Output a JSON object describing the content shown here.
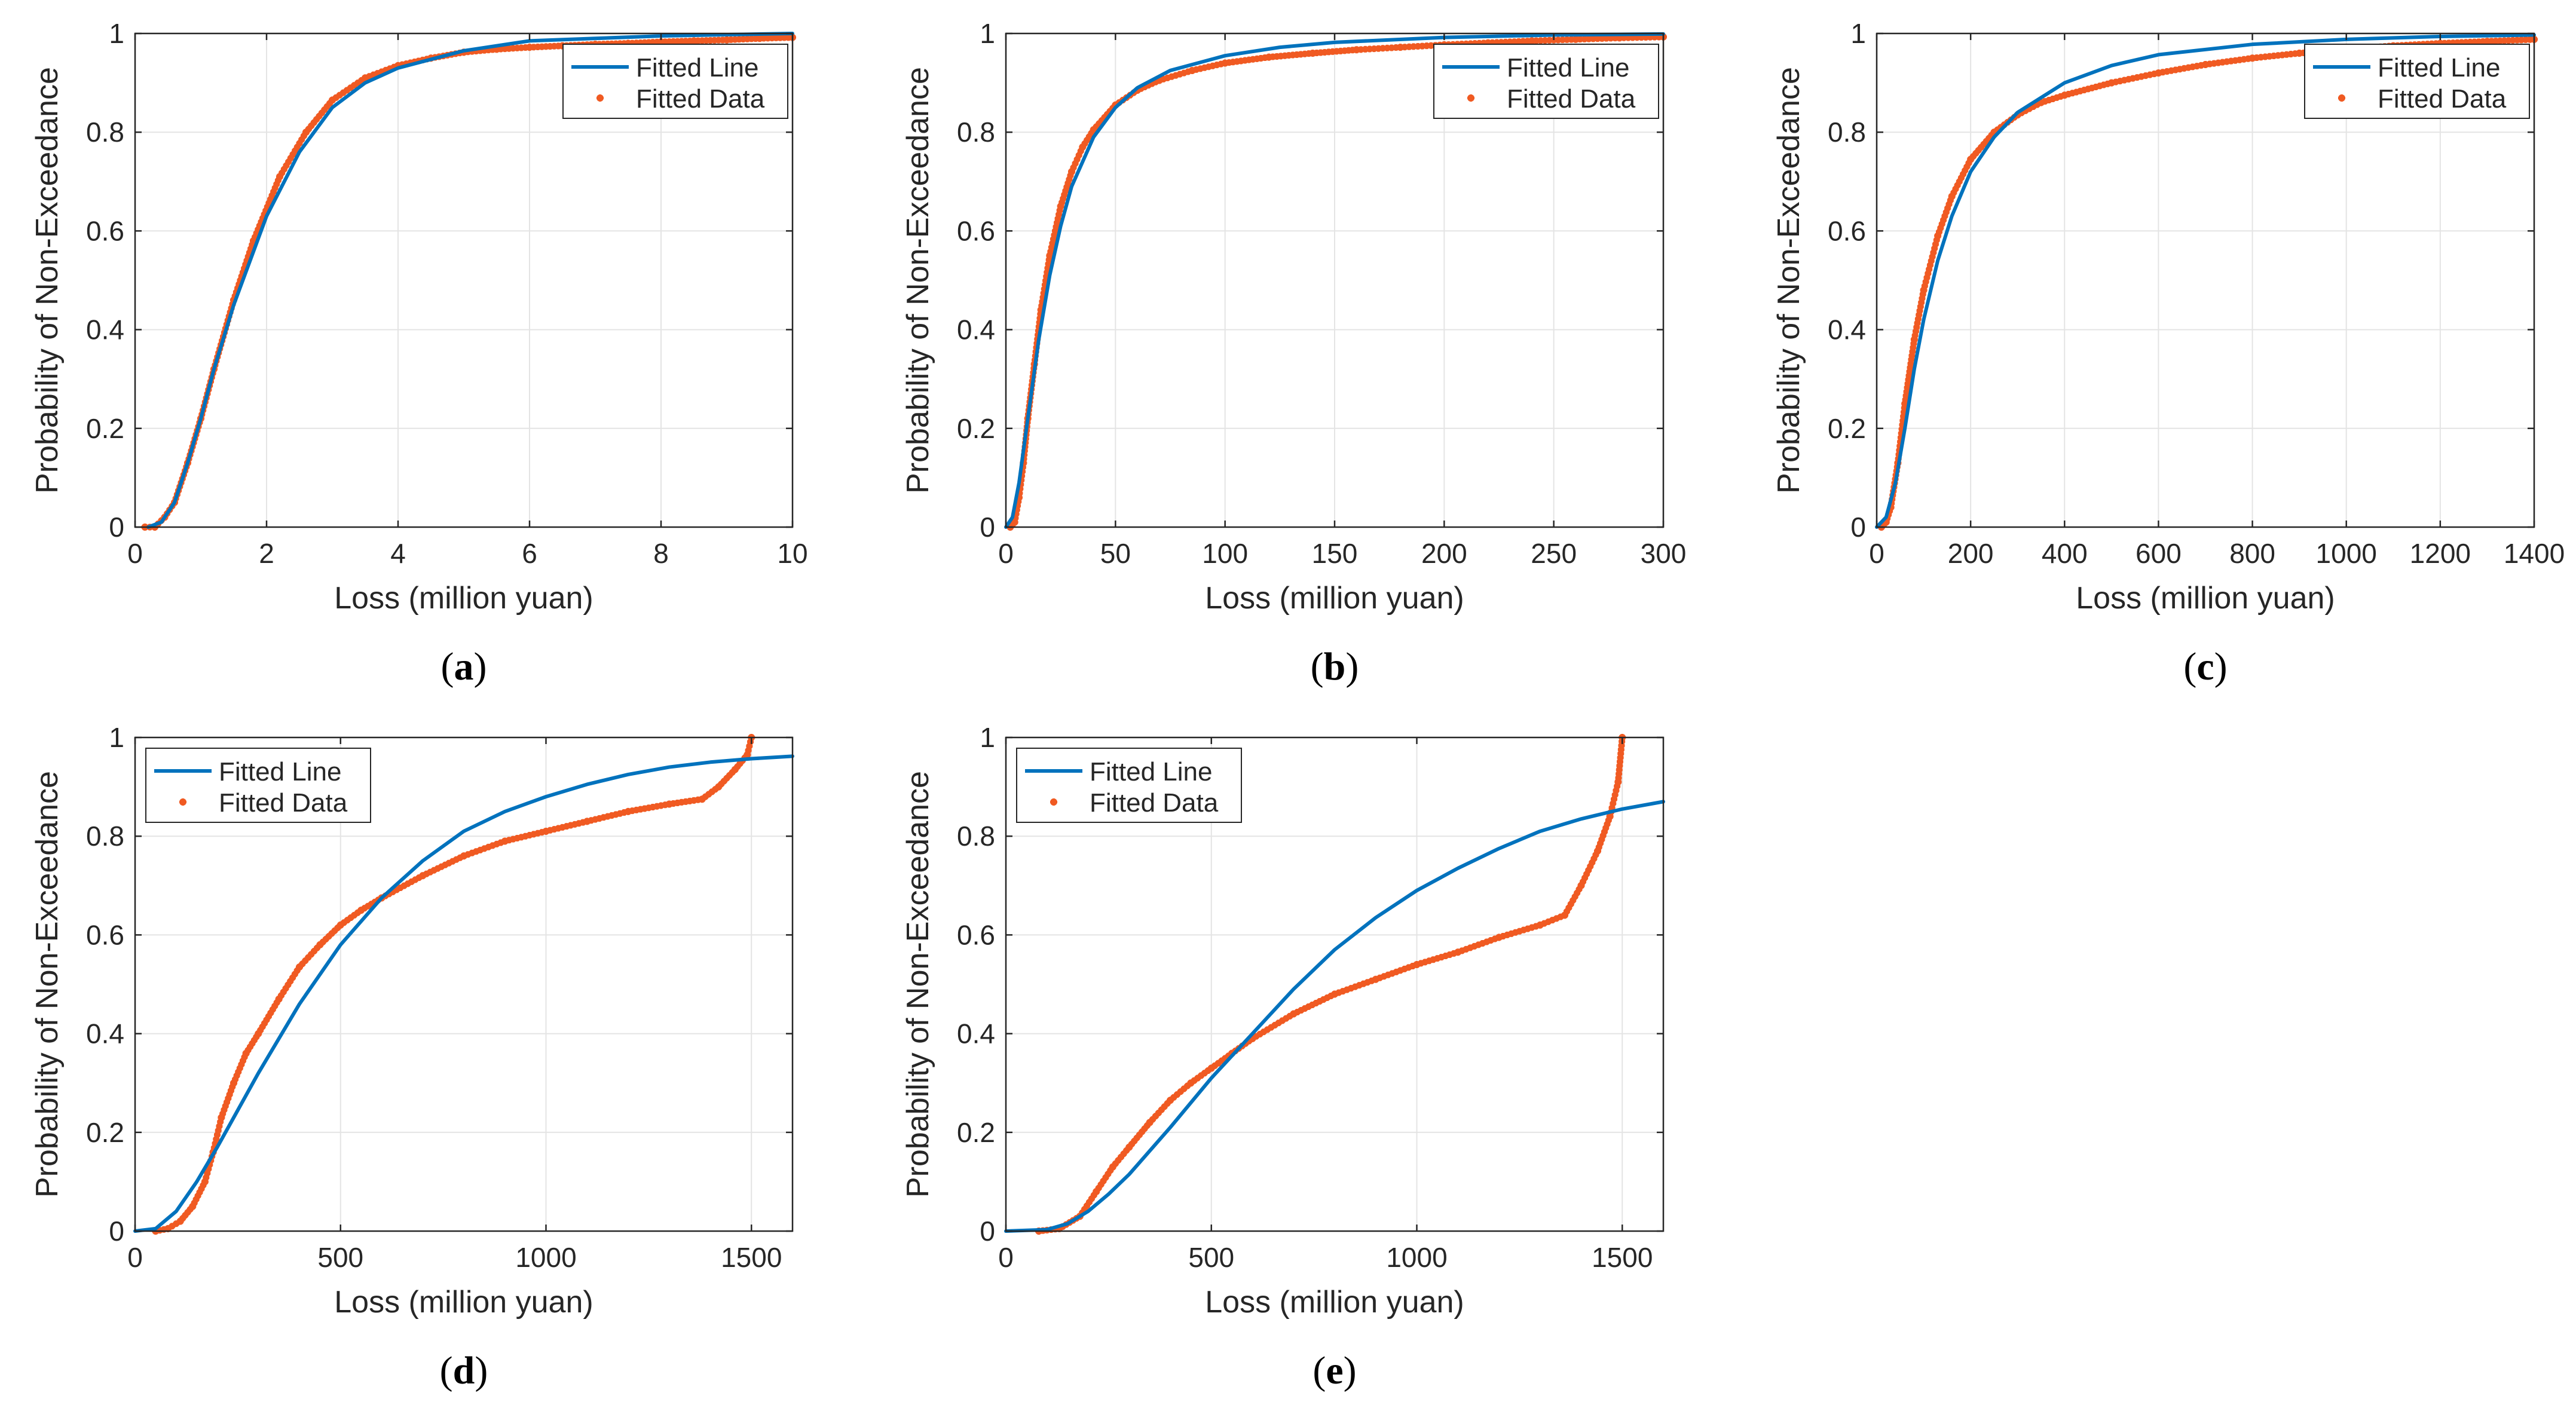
{
  "colors": {
    "line": "#0072BD",
    "data": "#F05A22",
    "grid": "#E4E4E4",
    "axis": "#262626",
    "legend_border": "#262626"
  },
  "chart_data": [
    {
      "id": "a",
      "panel_label": "a",
      "type": "line",
      "xlabel": "Loss (million yuan)",
      "ylabel": "Probability of Non-Exceedance",
      "xlim": [
        0,
        10
      ],
      "ylim": [
        0,
        1
      ],
      "xticks": [
        0,
        2,
        4,
        6,
        8,
        10
      ],
      "xtick_labels": [
        "0",
        "2",
        "4",
        "6",
        "8",
        "10"
      ],
      "yticks": [
        0,
        0.2,
        0.4,
        0.6,
        0.8,
        1
      ],
      "ytick_labels": [
        "0",
        "0.2",
        "0.4",
        "0.6",
        "0.8",
        "1"
      ],
      "legend": {
        "placement": "top-right",
        "entries": [
          "Fitted Line",
          "Fitted Data"
        ]
      },
      "grid": true,
      "series": [
        {
          "name": "Fitted Line",
          "kind": "line",
          "x": [
            0.2,
            0.4,
            0.6,
            0.8,
            1.0,
            1.2,
            1.5,
            2.0,
            2.5,
            3.0,
            3.5,
            4.0,
            5.0,
            6.0,
            7.0,
            8.0,
            10.0
          ],
          "y": [
            0.0,
            0.01,
            0.05,
            0.13,
            0.22,
            0.32,
            0.45,
            0.63,
            0.76,
            0.85,
            0.9,
            0.93,
            0.965,
            0.985,
            0.99,
            0.995,
            1.0
          ]
        },
        {
          "name": "Fitted Data",
          "kind": "markers",
          "x": [
            0.15,
            0.3,
            0.45,
            0.6,
            0.8,
            1.0,
            1.2,
            1.5,
            1.8,
            2.2,
            2.6,
            3.0,
            3.5,
            4.0,
            4.5,
            5.0,
            5.5,
            6.0,
            6.5,
            7.0,
            7.5,
            8.0,
            8.5,
            9.0,
            9.5,
            10.0
          ],
          "y": [
            0.0,
            0.0,
            0.02,
            0.05,
            0.13,
            0.22,
            0.32,
            0.46,
            0.58,
            0.71,
            0.8,
            0.865,
            0.91,
            0.935,
            0.95,
            0.962,
            0.968,
            0.972,
            0.975,
            0.978,
            0.98,
            0.983,
            0.985,
            0.987,
            0.99,
            0.992
          ]
        }
      ]
    },
    {
      "id": "b",
      "panel_label": "b",
      "type": "line",
      "xlabel": "Loss (million yuan)",
      "ylabel": "Probability of Non-Exceedance",
      "xlim": [
        0,
        300
      ],
      "ylim": [
        0,
        1
      ],
      "xticks": [
        0,
        50,
        100,
        150,
        200,
        250,
        300
      ],
      "xtick_labels": [
        "0",
        "50",
        "100",
        "150",
        "200",
        "250",
        "300"
      ],
      "yticks": [
        0,
        0.2,
        0.4,
        0.6,
        0.8,
        1
      ],
      "ytick_labels": [
        "0",
        "0.2",
        "0.4",
        "0.6",
        "0.8",
        "1"
      ],
      "legend": {
        "placement": "top-right",
        "entries": [
          "Fitted Line",
          "Fitted Data"
        ]
      },
      "grid": true,
      "series": [
        {
          "name": "Fitted Line",
          "kind": "line",
          "x": [
            0,
            3,
            6,
            10,
            15,
            20,
            25,
            30,
            40,
            50,
            60,
            75,
            100,
            125,
            150,
            200,
            250,
            300
          ],
          "y": [
            0.0,
            0.02,
            0.09,
            0.22,
            0.38,
            0.51,
            0.61,
            0.69,
            0.79,
            0.85,
            0.89,
            0.925,
            0.955,
            0.972,
            0.982,
            0.992,
            0.997,
            0.999
          ]
        },
        {
          "name": "Fitted Data",
          "kind": "markers",
          "x": [
            2,
            4,
            6,
            8,
            10,
            13,
            16,
            20,
            25,
            30,
            35,
            40,
            50,
            60,
            70,
            85,
            100,
            120,
            140,
            160,
            180,
            200,
            220,
            240,
            260,
            280,
            300
          ],
          "y": [
            0.0,
            0.01,
            0.06,
            0.13,
            0.22,
            0.33,
            0.44,
            0.55,
            0.65,
            0.72,
            0.77,
            0.805,
            0.855,
            0.885,
            0.905,
            0.925,
            0.94,
            0.952,
            0.96,
            0.967,
            0.972,
            0.977,
            0.981,
            0.985,
            0.988,
            0.991,
            0.993
          ]
        }
      ]
    },
    {
      "id": "c",
      "panel_label": "c",
      "type": "line",
      "xlabel": "Loss (million yuan)",
      "ylabel": "Probability of Non-Exceedance",
      "xlim": [
        0,
        1400
      ],
      "ylim": [
        0,
        1
      ],
      "xticks": [
        0,
        200,
        400,
        600,
        800,
        1000,
        1200,
        1400
      ],
      "xtick_labels": [
        "0",
        "200",
        "400",
        "600",
        "800",
        "1000",
        "1200",
        "1400"
      ],
      "yticks": [
        0,
        0.2,
        0.4,
        0.6,
        0.8,
        1
      ],
      "ytick_labels": [
        "0",
        "0.2",
        "0.4",
        "0.6",
        "0.8",
        "1"
      ],
      "legend": {
        "placement": "top-right",
        "entries": [
          "Fitted Line",
          "Fitted Data"
        ]
      },
      "grid": true,
      "series": [
        {
          "name": "Fitted Line",
          "kind": "line",
          "x": [
            0,
            20,
            40,
            60,
            80,
            100,
            130,
            160,
            200,
            250,
            300,
            400,
            500,
            600,
            800,
            1000,
            1200,
            1400
          ],
          "y": [
            0.0,
            0.02,
            0.09,
            0.2,
            0.32,
            0.42,
            0.54,
            0.63,
            0.72,
            0.79,
            0.84,
            0.9,
            0.935,
            0.957,
            0.978,
            0.988,
            0.994,
            0.997
          ]
        },
        {
          "name": "Fitted Data",
          "kind": "markers",
          "x": [
            10,
            20,
            30,
            45,
            60,
            80,
            100,
            130,
            160,
            200,
            250,
            300,
            350,
            400,
            500,
            600,
            700,
            800,
            900,
            1000,
            1100,
            1200,
            1300,
            1400
          ],
          "y": [
            0.0,
            0.01,
            0.04,
            0.13,
            0.25,
            0.38,
            0.48,
            0.59,
            0.67,
            0.745,
            0.8,
            0.835,
            0.86,
            0.875,
            0.9,
            0.92,
            0.937,
            0.95,
            0.96,
            0.968,
            0.975,
            0.98,
            0.984,
            0.988
          ]
        }
      ]
    },
    {
      "id": "d",
      "panel_label": "d",
      "type": "line",
      "xlabel": "Loss (million yuan)",
      "ylabel": "Probability of Non-Exceedance",
      "xlim": [
        0,
        1600
      ],
      "ylim": [
        0,
        1
      ],
      "xticks": [
        0,
        500,
        1000,
        1500
      ],
      "xtick_labels": [
        "0",
        "500",
        "1000",
        "1500"
      ],
      "yticks": [
        0,
        0.2,
        0.4,
        0.6,
        0.8,
        1
      ],
      "ytick_labels": [
        "0",
        "0.2",
        "0.4",
        "0.6",
        "0.8",
        "1"
      ],
      "legend": {
        "placement": "top-left",
        "entries": [
          "Fitted Line",
          "Fitted Data"
        ]
      },
      "grid": true,
      "series": [
        {
          "name": "Fitted Line",
          "kind": "line",
          "x": [
            0,
            50,
            100,
            150,
            200,
            250,
            300,
            400,
            500,
            600,
            700,
            800,
            900,
            1000,
            1100,
            1200,
            1300,
            1400,
            1500,
            1600
          ],
          "y": [
            0.0,
            0.005,
            0.04,
            0.1,
            0.17,
            0.245,
            0.32,
            0.46,
            0.58,
            0.675,
            0.75,
            0.81,
            0.85,
            0.88,
            0.905,
            0.925,
            0.94,
            0.95,
            0.957,
            0.962
          ]
        },
        {
          "name": "Fitted Data",
          "kind": "markers",
          "x": [
            50,
            80,
            110,
            140,
            170,
            190,
            210,
            240,
            270,
            300,
            350,
            400,
            450,
            500,
            550,
            600,
            700,
            800,
            900,
            1000,
            1100,
            1200,
            1300,
            1380,
            1420,
            1460,
            1490,
            1500
          ],
          "y": [
            0.0,
            0.005,
            0.02,
            0.05,
            0.1,
            0.16,
            0.23,
            0.3,
            0.36,
            0.4,
            0.47,
            0.535,
            0.58,
            0.62,
            0.65,
            0.675,
            0.72,
            0.76,
            0.79,
            0.81,
            0.83,
            0.85,
            0.865,
            0.875,
            0.9,
            0.935,
            0.965,
            1.0
          ]
        }
      ]
    },
    {
      "id": "e",
      "panel_label": "e",
      "type": "line",
      "xlabel": "Loss (million yuan)",
      "ylabel": "Probability of Non-Exceedance",
      "xlim": [
        0,
        1600
      ],
      "ylim": [
        0,
        1
      ],
      "xticks": [
        0,
        500,
        1000,
        1500
      ],
      "xtick_labels": [
        "0",
        "500",
        "1000",
        "1500"
      ],
      "yticks": [
        0,
        0.2,
        0.4,
        0.6,
        0.8,
        1
      ],
      "ytick_labels": [
        "0",
        "0.2",
        "0.4",
        "0.6",
        "0.8",
        "1"
      ],
      "legend": {
        "placement": "top-left",
        "entries": [
          "Fitted Line",
          "Fitted Data"
        ]
      },
      "grid": true,
      "series": [
        {
          "name": "Fitted Line",
          "kind": "line",
          "x": [
            0,
            100,
            150,
            200,
            250,
            300,
            400,
            500,
            600,
            700,
            800,
            900,
            1000,
            1100,
            1200,
            1300,
            1400,
            1500,
            1600
          ],
          "y": [
            0.0,
            0.003,
            0.015,
            0.04,
            0.075,
            0.115,
            0.21,
            0.31,
            0.4,
            0.49,
            0.57,
            0.635,
            0.69,
            0.735,
            0.775,
            0.81,
            0.835,
            0.855,
            0.87
          ]
        },
        {
          "name": "Fitted Data",
          "kind": "markers",
          "x": [
            80,
            130,
            180,
            220,
            260,
            300,
            350,
            400,
            450,
            500,
            550,
            600,
            700,
            800,
            900,
            1000,
            1100,
            1200,
            1300,
            1360,
            1400,
            1440,
            1470,
            1490,
            1500
          ],
          "y": [
            0.0,
            0.005,
            0.03,
            0.08,
            0.13,
            0.17,
            0.22,
            0.265,
            0.3,
            0.33,
            0.36,
            0.39,
            0.44,
            0.48,
            0.51,
            0.54,
            0.565,
            0.595,
            0.62,
            0.64,
            0.7,
            0.77,
            0.84,
            0.91,
            1.0
          ]
        }
      ]
    }
  ]
}
